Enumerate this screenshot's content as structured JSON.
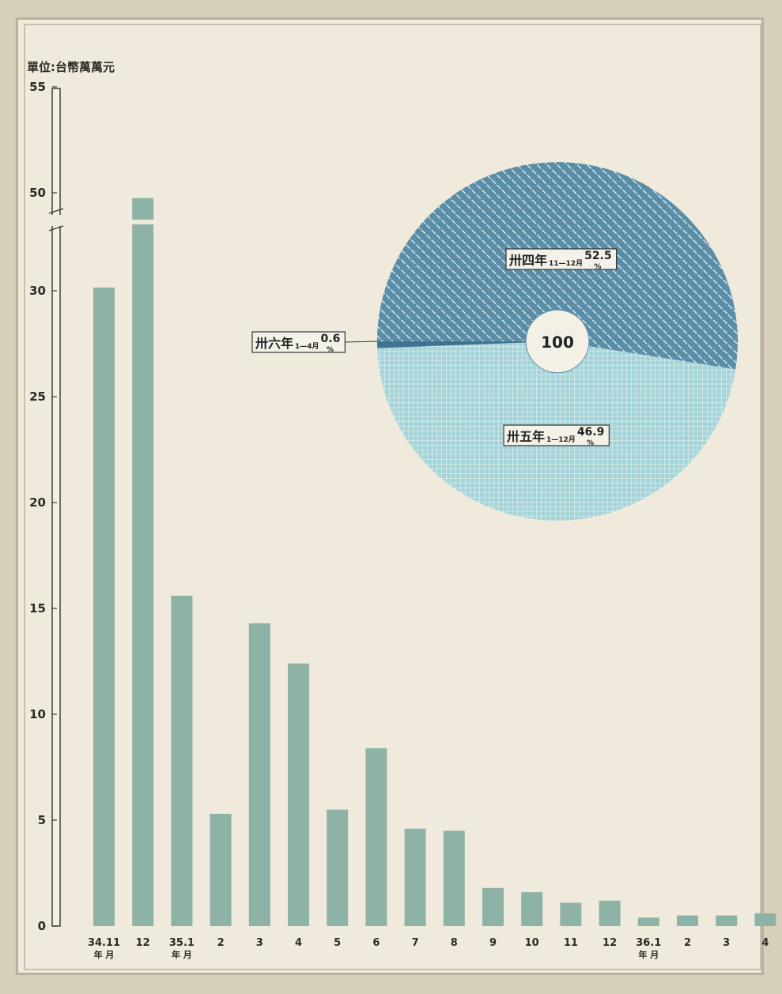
{
  "chart_data": [
    {
      "type": "bar",
      "unit_label": "單位:台幣萬萬元",
      "yticks": [
        "0",
        "5",
        "10",
        "15",
        "20",
        "25",
        "30",
        "50",
        "55"
      ],
      "categories": [
        {
          "label": "34.11",
          "sub": "年 月"
        },
        {
          "label": "12",
          "sub": ""
        },
        {
          "label": "35.1",
          "sub": "年 月"
        },
        {
          "label": "2",
          "sub": ""
        },
        {
          "label": "3",
          "sub": ""
        },
        {
          "label": "4",
          "sub": ""
        },
        {
          "label": "5",
          "sub": ""
        },
        {
          "label": "6",
          "sub": ""
        },
        {
          "label": "7",
          "sub": ""
        },
        {
          "label": "8",
          "sub": ""
        },
        {
          "label": "9",
          "sub": ""
        },
        {
          "label": "10",
          "sub": ""
        },
        {
          "label": "11",
          "sub": ""
        },
        {
          "label": "12",
          "sub": ""
        },
        {
          "label": "36.1",
          "sub": "年 月"
        },
        {
          "label": "2",
          "sub": ""
        },
        {
          "label": "3",
          "sub": ""
        },
        {
          "label": "4",
          "sub": ""
        }
      ],
      "values": [
        30.8,
        49.5,
        15.6,
        5.3,
        14.3,
        12.4,
        5.5,
        8.4,
        4.6,
        4.5,
        1.8,
        1.6,
        1.1,
        1.2,
        0.4,
        0.5,
        0.5,
        0.6
      ],
      "axis_break": {
        "below": 30,
        "above": 45
      },
      "ylim": [
        0,
        55
      ],
      "color": "#8eb3a6"
    },
    {
      "type": "pie",
      "center_label": "100",
      "slices": [
        {
          "label": "卅四年",
          "sub": "11—12月",
          "value": 52.5,
          "value_text": "52.5",
          "pct": "%",
          "color": "#5a8ea8"
        },
        {
          "label": "卅五年",
          "sub": "1—12月",
          "value": 46.9,
          "value_text": "46.9",
          "pct": "%",
          "color": "#a5d4d8"
        },
        {
          "label": "卅六年",
          "sub": "1—4月",
          "value": 0.6,
          "value_text": "0.6",
          "pct": "%",
          "color": "#3f7393"
        }
      ]
    }
  ]
}
